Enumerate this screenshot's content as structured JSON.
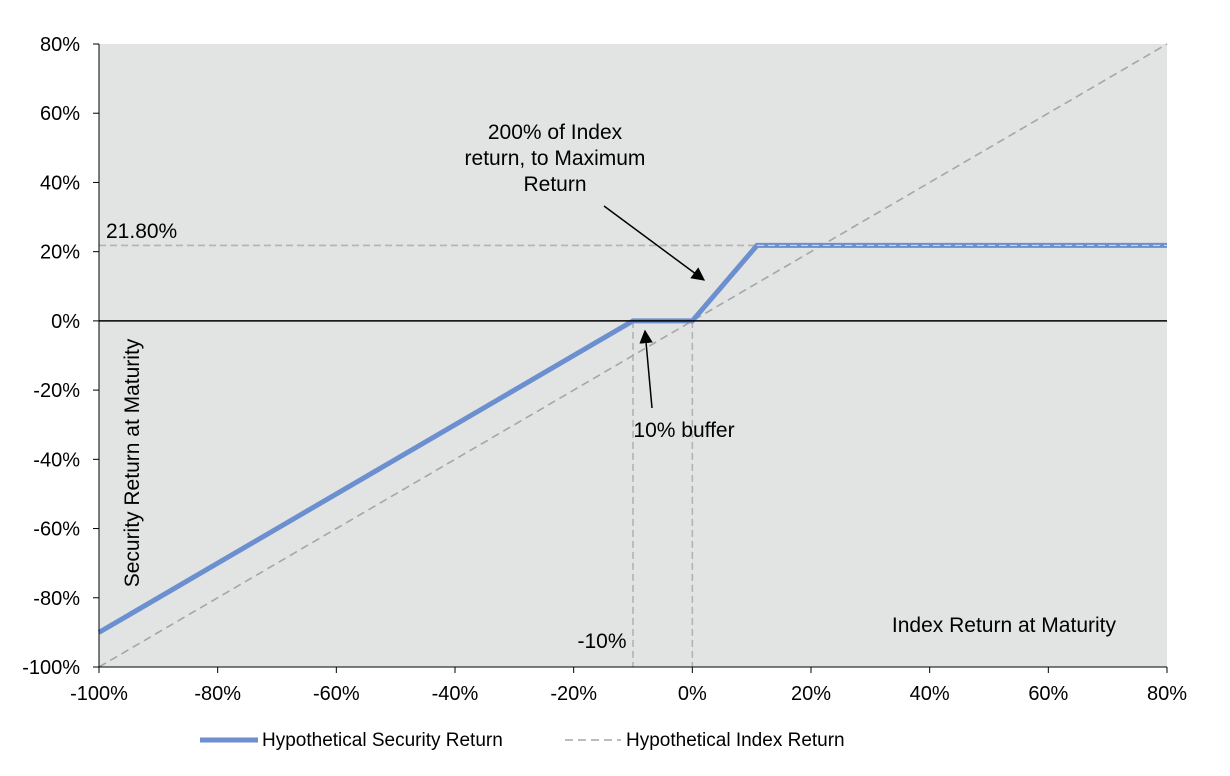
{
  "chart_data": {
    "type": "line",
    "title": "",
    "xlabel": "Index Return at Maturity",
    "ylabel": "Security Return at Maturity",
    "xlim": [
      -100,
      80
    ],
    "ylim": [
      -100,
      80
    ],
    "x_ticks": [
      -100,
      -80,
      -60,
      -40,
      -20,
      0,
      20,
      40,
      60,
      80
    ],
    "y_ticks": [
      -100,
      -80,
      -60,
      -40,
      -20,
      0,
      20,
      40,
      60,
      80
    ],
    "x_tick_labels": [
      "-100%",
      "-80%",
      "-60%",
      "-40%",
      "-20%",
      "0%",
      "20%",
      "40%",
      "60%",
      "80%"
    ],
    "y_tick_labels": [
      "-100%",
      "-80%",
      "-60%",
      "-40%",
      "-20%",
      "0%",
      "20%",
      "40%",
      "60%",
      "80%"
    ],
    "series": [
      {
        "name": "Hypothetical Security Return",
        "color": "#6b8fcf",
        "x": [
          -100,
          -10,
          0,
          10.9,
          80
        ],
        "y": [
          -90,
          0,
          0,
          21.8,
          21.8
        ]
      },
      {
        "name": "Hypothetical Index Return",
        "color": "#a6a6a6",
        "x": [
          -100,
          80
        ],
        "y": [
          -100,
          80
        ]
      }
    ],
    "reference_lines": {
      "cap_value": 21.8,
      "buffer_value": -10,
      "zero_value": 0
    },
    "annotations": {
      "cap_label": "21.80%",
      "buffer_label": "-10%",
      "buffer_note": "10% buffer",
      "participation_note_lines": [
        "200% of Index",
        "return, to Maximum",
        "Return"
      ]
    },
    "plot_background": "#e2e3e3"
  }
}
